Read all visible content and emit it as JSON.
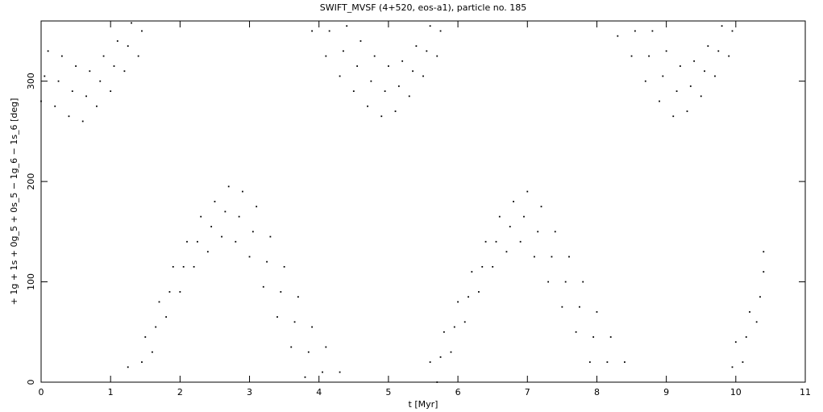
{
  "chart_data": {
    "type": "scatter",
    "title": "SWIFT_MVSF (4+520, eos-a1), particle no. 185",
    "x_label": "t [Myr]",
    "y_label": "+ 1g + 1s + 0g_5 + 0s_5 − 1g_6 − 1s_6 [deg]",
    "xlim": [
      0,
      11
    ],
    "ylim": [
      0,
      360
    ],
    "xticks": [
      0,
      1,
      2,
      3,
      4,
      5,
      6,
      7,
      8,
      9,
      10,
      11
    ],
    "yticks": [
      0,
      100,
      200,
      300
    ],
    "color": "#000000",
    "x": [
      0,
      0.05,
      0.1,
      0.2,
      0.25,
      0.3,
      0.4,
      0.45,
      0.5,
      0.6,
      0.65,
      0.7,
      0.8,
      0.85,
      0.9,
      1.0,
      1.05,
      1.1,
      1.2,
      1.25,
      1.3,
      1.4,
      1.45,
      1.25,
      1.45,
      1.5,
      1.6,
      1.65,
      1.7,
      1.8,
      1.85,
      1.9,
      2.0,
      2.05,
      2.1,
      2.2,
      2.25,
      2.3,
      2.4,
      2.45,
      2.5,
      2.6,
      2.65,
      2.7,
      2.8,
      2.85,
      2.9,
      3.0,
      3.05,
      3.1,
      3.2,
      3.25,
      3.3,
      3.4,
      3.45,
      3.5,
      3.6,
      3.65,
      3.7,
      3.8,
      3.85,
      3.9,
      4.05,
      4.1,
      4.3,
      3.9,
      4.1,
      4.15,
      4.3,
      4.35,
      4.4,
      4.5,
      4.55,
      4.6,
      4.7,
      4.75,
      4.8,
      4.9,
      4.95,
      5.0,
      5.1,
      5.15,
      5.2,
      5.3,
      5.35,
      5.4,
      5.5,
      5.55,
      5.6,
      5.7,
      5.75,
      5.6,
      5.7,
      5.75,
      5.8,
      5.9,
      5.95,
      6.0,
      6.1,
      6.15,
      6.2,
      6.3,
      6.35,
      6.4,
      6.5,
      6.55,
      6.6,
      6.7,
      6.75,
      6.8,
      6.9,
      6.95,
      7.0,
      7.1,
      7.15,
      7.2,
      7.3,
      7.35,
      7.4,
      7.5,
      7.55,
      7.6,
      7.7,
      7.75,
      7.8,
      7.9,
      7.95,
      8.0,
      8.15,
      8.2,
      8.4,
      8.3,
      8.5,
      8.55,
      8.7,
      8.75,
      8.8,
      8.9,
      8.95,
      9.0,
      9.1,
      9.15,
      9.2,
      9.3,
      9.35,
      9.4,
      9.5,
      9.55,
      9.6,
      9.7,
      9.75,
      9.8,
      9.9,
      9.95,
      9.95,
      10.0,
      10.1,
      10.15,
      10.2,
      10.3,
      10.35,
      10.4,
      10.4
    ],
    "values": [
      280,
      305,
      330,
      275,
      300,
      325,
      265,
      290,
      315,
      260,
      285,
      310,
      275,
      300,
      325,
      290,
      315,
      340,
      310,
      335,
      358,
      325,
      350,
      15,
      20,
      45,
      30,
      55,
      80,
      65,
      90,
      115,
      90,
      115,
      140,
      115,
      140,
      165,
      130,
      155,
      180,
      145,
      170,
      195,
      140,
      165,
      190,
      125,
      150,
      175,
      95,
      120,
      145,
      65,
      90,
      115,
      35,
      60,
      85,
      5,
      30,
      55,
      10,
      35,
      10,
      350,
      325,
      350,
      305,
      330,
      355,
      290,
      315,
      340,
      275,
      300,
      325,
      265,
      290,
      315,
      270,
      295,
      320,
      285,
      310,
      335,
      305,
      330,
      355,
      325,
      350,
      20,
      0,
      25,
      50,
      30,
      55,
      80,
      60,
      85,
      110,
      90,
      115,
      140,
      115,
      140,
      165,
      130,
      155,
      180,
      140,
      165,
      190,
      125,
      150,
      175,
      100,
      125,
      150,
      75,
      100,
      125,
      50,
      75,
      100,
      20,
      45,
      70,
      20,
      45,
      20,
      345,
      325,
      350,
      300,
      325,
      350,
      280,
      305,
      330,
      265,
      290,
      315,
      270,
      295,
      320,
      285,
      310,
      335,
      305,
      330,
      355,
      325,
      350,
      15,
      40,
      20,
      45,
      70,
      60,
      85,
      110,
      130
    ]
  }
}
